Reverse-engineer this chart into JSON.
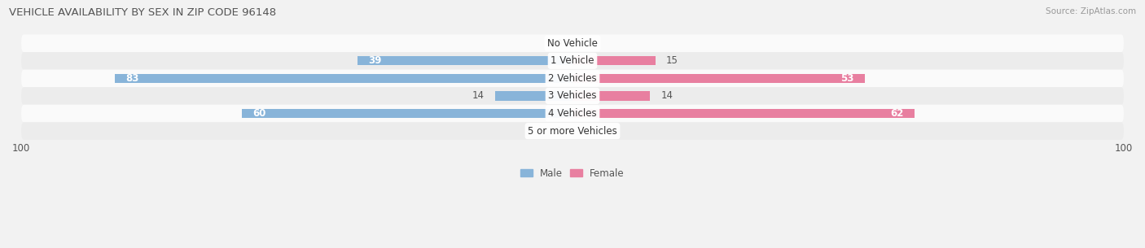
{
  "title": "VEHICLE AVAILABILITY BY SEX IN ZIP CODE 96148",
  "source": "Source: ZipAtlas.com",
  "categories": [
    "No Vehicle",
    "1 Vehicle",
    "2 Vehicles",
    "3 Vehicles",
    "4 Vehicles",
    "5 or more Vehicles"
  ],
  "male_values": [
    0,
    39,
    83,
    14,
    60,
    0
  ],
  "female_values": [
    0,
    15,
    53,
    14,
    62,
    0
  ],
  "male_color": "#88b4d9",
  "female_color": "#e87fa0",
  "bar_height": 0.52,
  "xlim": 100,
  "bg_color": "#f2f2f2",
  "row_bg_colors": [
    "#fafafa",
    "#ececec"
  ],
  "label_fontsize": 8.5,
  "title_fontsize": 9.5,
  "source_fontsize": 7.5,
  "value_threshold": 20
}
